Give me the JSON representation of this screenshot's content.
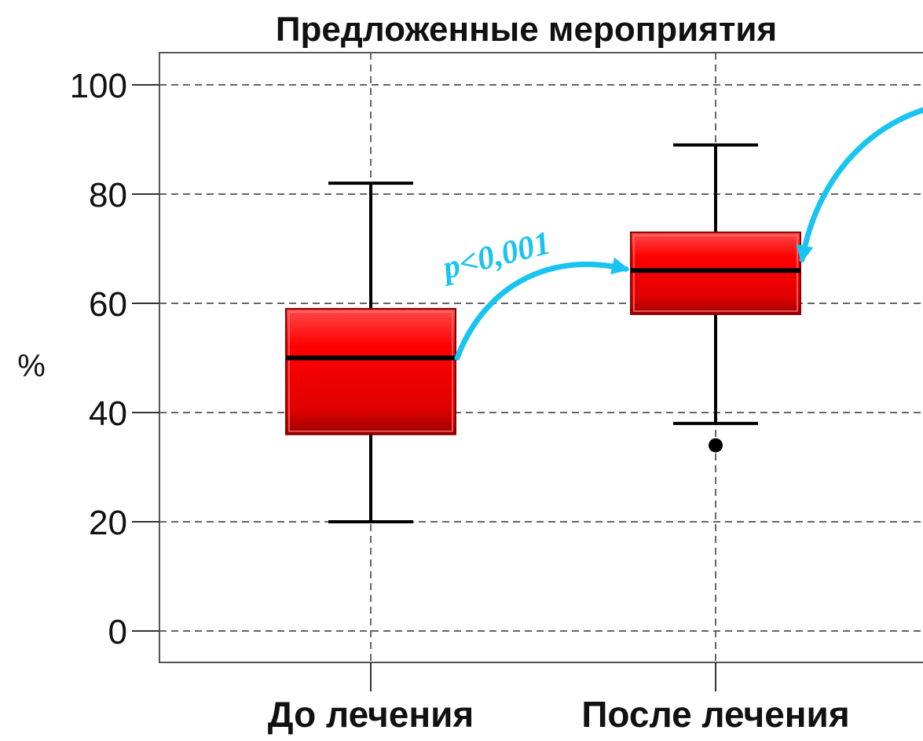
{
  "chart_data": {
    "type": "box",
    "title": "Предложенные мероприятия",
    "xlabel": "",
    "ylabel": "%",
    "ylim": [
      0,
      100
    ],
    "y_ticks": [
      "0",
      "20",
      "40",
      "60",
      "80",
      "100"
    ],
    "grid": true,
    "categories": [
      "До лечения",
      "После лечения"
    ],
    "boxes": [
      {
        "whisker_low": 20,
        "q1": 36,
        "median": 50,
        "q3": 59,
        "whisker_high": 82,
        "outliers": []
      },
      {
        "whisker_low": 38,
        "q1": 58,
        "median": 66,
        "q3": 73,
        "whisker_high": 89,
        "outliers": [
          34
        ]
      }
    ],
    "annotation": {
      "text": "p<0,001",
      "from_category": 0,
      "to_category": 1,
      "value_from": 50,
      "value_to": 66
    },
    "colors": {
      "box_fill": "#ee0000",
      "box_stroke": "#8a0000",
      "arrow": "#18c4f0",
      "grid": "#666666",
      "line": "#000000"
    }
  }
}
